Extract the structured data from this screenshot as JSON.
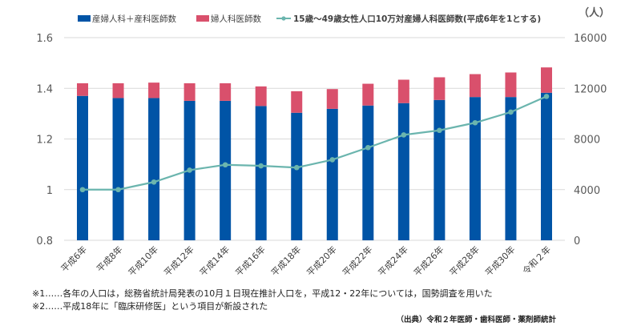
{
  "chart_data": {
    "type": "bar+line",
    "unit_label": "（人）",
    "categories": [
      "平成6年",
      "平成8年",
      "平成10年",
      "平成12年",
      "平成14年",
      "平成16年",
      "平成18年",
      "平成20年",
      "平成22年",
      "平成24年",
      "平成26年",
      "平成28年",
      "平成30年",
      "令和２年"
    ],
    "left_axis": {
      "ylim": [
        0.8,
        1.6
      ],
      "ticks": [
        "0.8",
        "1",
        "1.2",
        "1.4",
        "1.6"
      ]
    },
    "right_axis": {
      "ylim": [
        0,
        16000
      ],
      "ticks": [
        "0",
        "4000",
        "8000",
        "12000",
        "16000"
      ]
    },
    "grid": true,
    "legend_position": "top",
    "series": [
      {
        "name": "産婦人科＋産科医師数",
        "type": "stacked-bar",
        "axis": "right",
        "color": "#0054A6",
        "values": [
          11400,
          11230,
          11230,
          11010,
          11010,
          10600,
          10070,
          10380,
          10640,
          10830,
          11080,
          11310,
          11310,
          11650
        ]
      },
      {
        "name": "婦人科医師数",
        "type": "stacked-bar",
        "axis": "right",
        "color": "#D9506C",
        "values": [
          1000,
          1170,
          1220,
          1390,
          1390,
          1550,
          1700,
          1560,
          1720,
          1850,
          1790,
          1810,
          1940,
          2000
        ]
      },
      {
        "name": "15歳～49歳女性人口10万対産婦人科医師数(平成6年を1とする)",
        "type": "line",
        "axis": "left",
        "color": "#6BB5AE",
        "values": [
          1.0,
          1.0,
          1.03,
          1.077,
          1.098,
          1.094,
          1.087,
          1.118,
          1.166,
          1.216,
          1.234,
          1.264,
          1.306,
          1.368
        ]
      }
    ]
  },
  "notes": {
    "note1": "※1……各年の人口は，総務省統計局発表の10月１日現在推計人口を，平成12・22年については，国勢調査を用いた",
    "note2": "※2……平成18年に「臨床研修医」という項目が新設された",
    "source": "（出典）令和２年医師・歯科医師・薬剤師統計"
  }
}
